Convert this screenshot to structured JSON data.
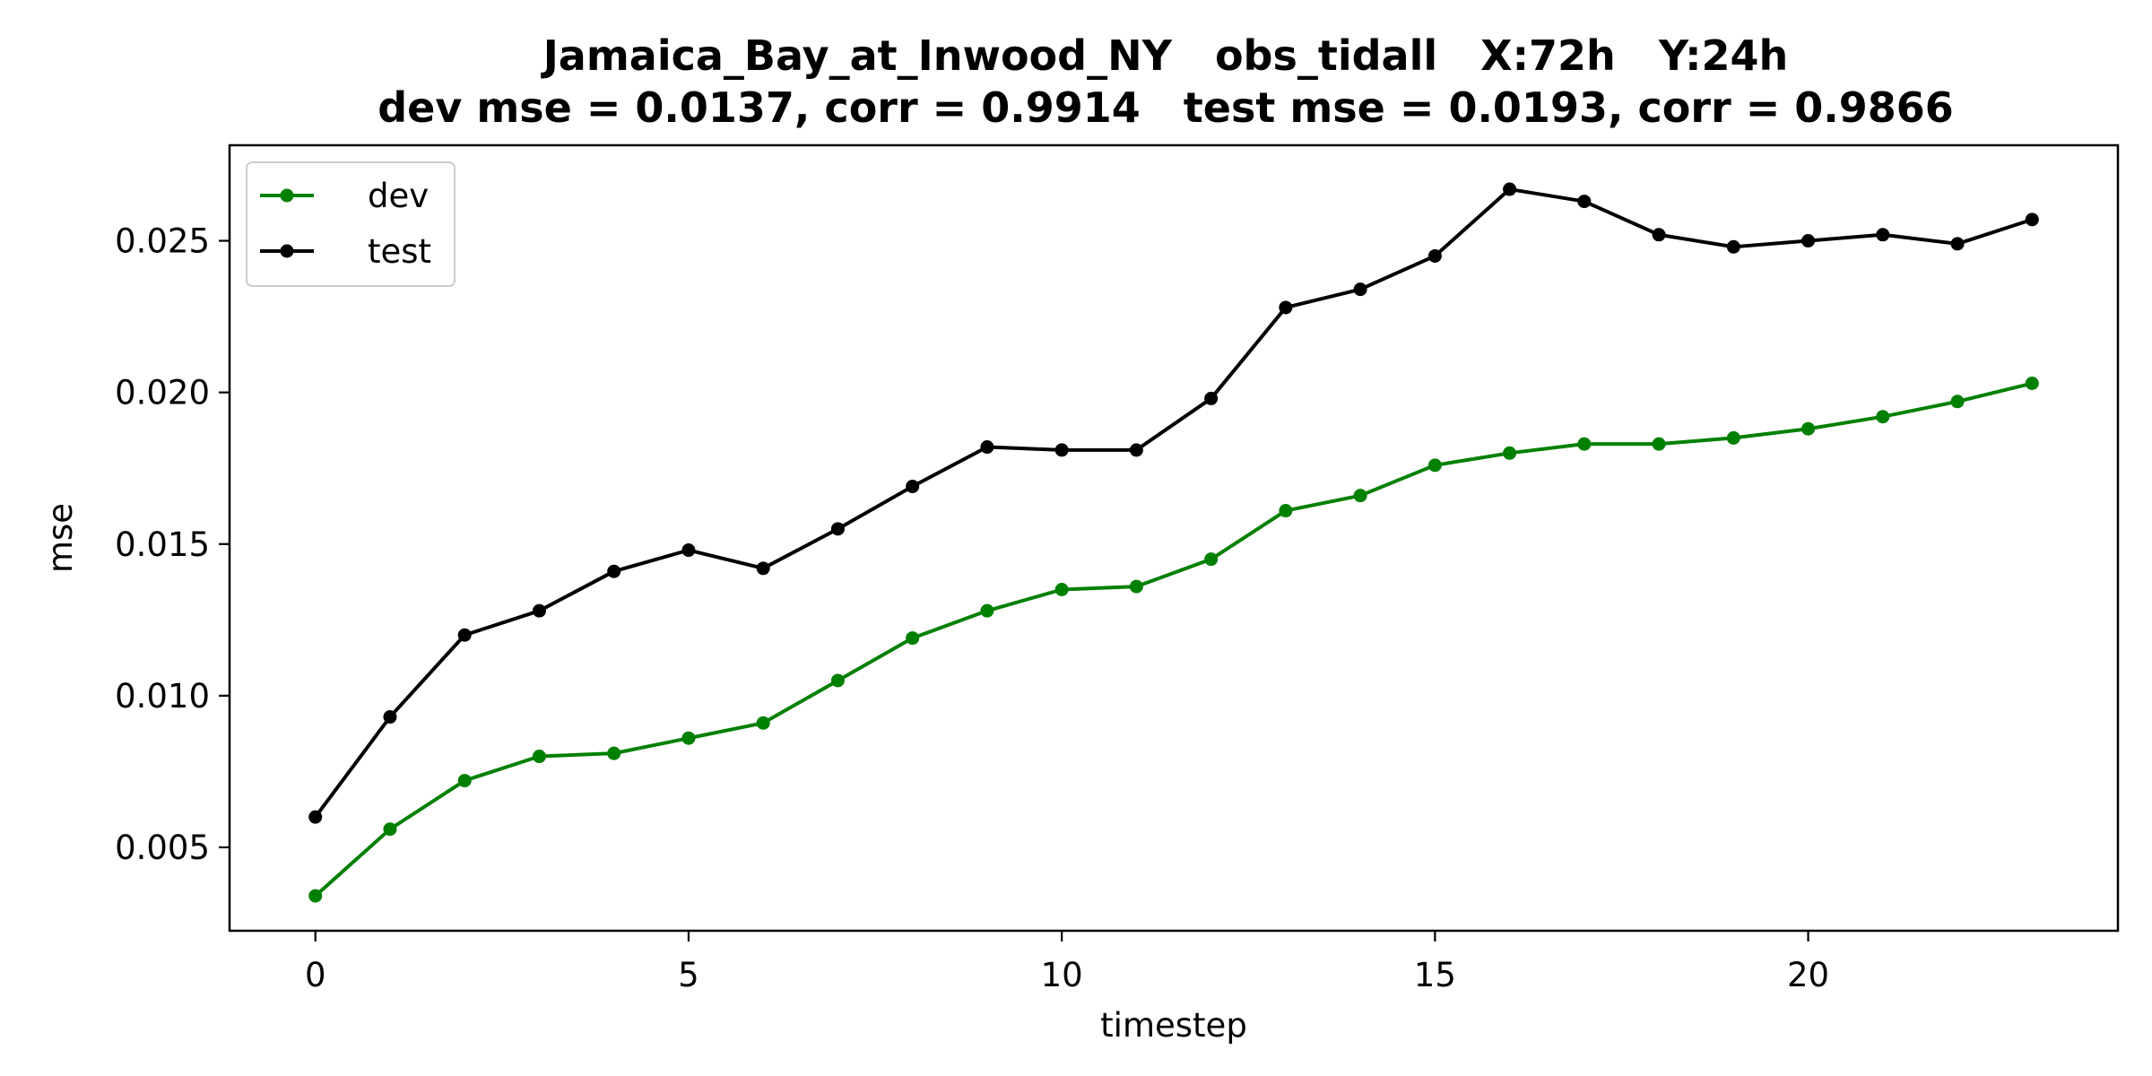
{
  "chart_data": {
    "type": "line",
    "title": "Jamaica_Bay_at_Inwood_NY   obs_tidall   X:72h   Y:24h",
    "subtitle": "dev mse = 0.0137, corr = 0.9914   test mse = 0.0193, corr = 0.9866",
    "xlabel": "timestep",
    "ylabel": "mse",
    "xlim": [
      -1.15,
      24.15
    ],
    "ylim": [
      0.00225,
      0.02815
    ],
    "x_ticks": [
      0,
      5,
      10,
      15,
      20
    ],
    "x_tick_labels": [
      "0",
      "5",
      "10",
      "15",
      "20"
    ],
    "y_ticks": [
      0.005,
      0.01,
      0.015,
      0.02,
      0.025
    ],
    "y_tick_labels": [
      "0.005",
      "0.010",
      "0.015",
      "0.020",
      "0.025"
    ],
    "grid": false,
    "legend_position": "top-left",
    "x": [
      0,
      1,
      2,
      3,
      4,
      5,
      6,
      7,
      8,
      9,
      10,
      11,
      12,
      13,
      14,
      15,
      16,
      17,
      18,
      19,
      20,
      21,
      22,
      23
    ],
    "series": [
      {
        "name": "dev",
        "color": "#008000",
        "marker": "circle",
        "values": [
          0.0034,
          0.0056,
          0.0072,
          0.008,
          0.0081,
          0.0086,
          0.0091,
          0.0105,
          0.0119,
          0.0128,
          0.0135,
          0.0136,
          0.0145,
          0.0161,
          0.0166,
          0.0176,
          0.018,
          0.0183,
          0.0183,
          0.0185,
          0.0188,
          0.0192,
          0.0197,
          0.0203
        ]
      },
      {
        "name": "test",
        "color": "#000000",
        "marker": "circle",
        "values": [
          0.006,
          0.0093,
          0.012,
          0.0128,
          0.0141,
          0.0148,
          0.0142,
          0.0155,
          0.0169,
          0.0182,
          0.0181,
          0.0181,
          0.0198,
          0.0228,
          0.0234,
          0.0245,
          0.0267,
          0.0263,
          0.0252,
          0.0248,
          0.025,
          0.0252,
          0.0249,
          0.0257
        ]
      }
    ]
  }
}
